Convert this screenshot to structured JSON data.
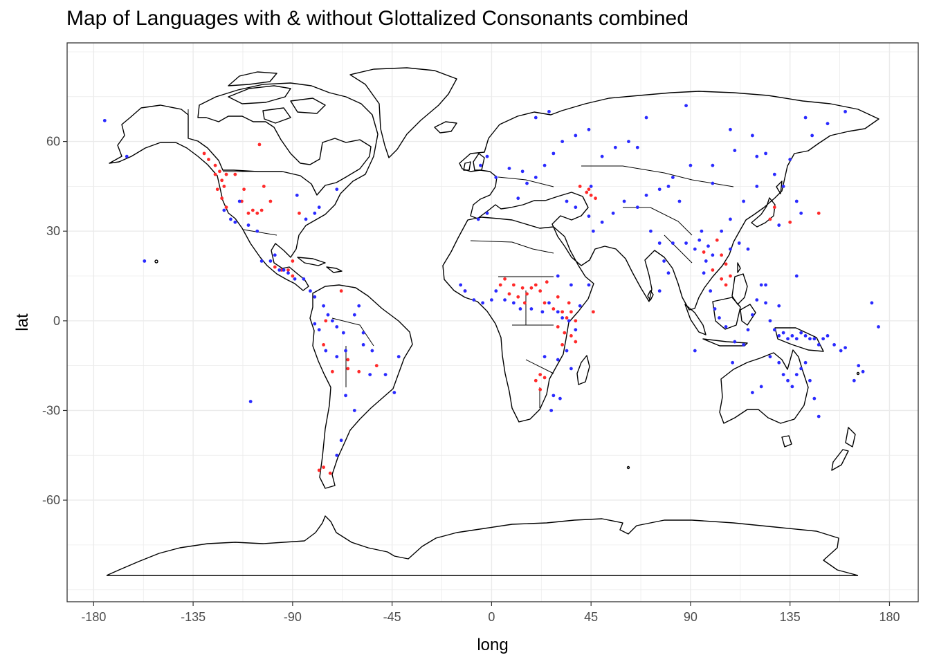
{
  "title": "Map of Languages with & without Glottalized Consonants combined",
  "colors": {
    "with_glottalized": "#ff2a2a",
    "without_glottalized": "#2a2aff",
    "grid": "#ebebeb",
    "panel_border": "#333333"
  },
  "chart_data": {
    "type": "scatter",
    "title": "Map of Languages with & without Glottalized Consonants combined",
    "xlabel": "long",
    "ylabel": "lat",
    "xlim": [
      -192,
      193
    ],
    "ylim": [
      -94,
      93
    ],
    "x_ticks": [
      -180,
      -135,
      -90,
      -45,
      0,
      45,
      90,
      135,
      180
    ],
    "x_tick_labels": [
      "-180",
      "-135",
      "-90",
      "-45",
      "0",
      "45",
      "90",
      "135",
      "180"
    ],
    "y_ticks": [
      -60,
      -30,
      0,
      30,
      60
    ],
    "y_tick_labels": [
      "-60",
      "-30",
      "0",
      "30",
      "60"
    ],
    "grid": true,
    "legend": "none",
    "series": [
      {
        "color": "#ff2a2a",
        "points": [
          [
            -130,
            56
          ],
          [
            -128,
            54
          ],
          [
            -125,
            52
          ],
          [
            -123,
            50
          ],
          [
            -122,
            47
          ],
          [
            -124,
            44
          ],
          [
            -120,
            49
          ],
          [
            -116,
            49
          ],
          [
            -105,
            59
          ],
          [
            -103,
            45
          ],
          [
            -112,
            44
          ],
          [
            -110,
            36
          ],
          [
            -106,
            36
          ],
          [
            -104,
            37
          ],
          [
            -113,
            40
          ],
          [
            -120,
            38
          ],
          [
            -122,
            41
          ],
          [
            -121,
            45
          ],
          [
            -100,
            40
          ],
          [
            -87,
            36
          ],
          [
            -90,
            20
          ],
          [
            -92,
            17
          ],
          [
            -90,
            15
          ],
          [
            -98,
            18
          ],
          [
            -95,
            17
          ],
          [
            -76,
            -8
          ],
          [
            -72,
            -17
          ],
          [
            -65,
            -16
          ],
          [
            -78,
            -50
          ],
          [
            -76,
            -49
          ],
          [
            -65,
            -13
          ],
          [
            -60,
            -17
          ],
          [
            -52,
            -15
          ],
          [
            10,
            12
          ],
          [
            8,
            9
          ],
          [
            12,
            8
          ],
          [
            14,
            11
          ],
          [
            16,
            9
          ],
          [
            18,
            11
          ],
          [
            20,
            12
          ],
          [
            22,
            10
          ],
          [
            25,
            13
          ],
          [
            15,
            6
          ],
          [
            28,
            4
          ],
          [
            32,
            3
          ],
          [
            35,
            6
          ],
          [
            34,
            1
          ],
          [
            36,
            3
          ],
          [
            30,
            -2
          ],
          [
            33,
            -4
          ],
          [
            36,
            -5
          ],
          [
            38,
            -7
          ],
          [
            22,
            -18
          ],
          [
            20,
            -20
          ],
          [
            22,
            -23
          ],
          [
            24,
            -19
          ],
          [
            38,
            0
          ],
          [
            32,
            -8
          ],
          [
            40,
            45
          ],
          [
            43,
            43
          ],
          [
            45,
            42
          ],
          [
            47,
            41
          ],
          [
            44,
            44
          ],
          [
            102,
            27
          ],
          [
            104,
            22
          ],
          [
            106,
            19
          ],
          [
            108,
            15
          ],
          [
            106,
            12
          ],
          [
            104,
            14
          ],
          [
            100,
            17
          ],
          [
            96,
            23
          ],
          [
            128,
            38
          ],
          [
            126,
            34
          ],
          [
            135,
            33
          ],
          [
            148,
            36
          ],
          [
            4,
            12
          ],
          [
            6,
            14
          ],
          [
            -73,
            -51
          ],
          [
            24,
            6
          ],
          [
            46,
            3
          ],
          [
            -125,
            49
          ],
          [
            -108,
            37
          ],
          [
            -12,
            10
          ],
          [
            30,
            8
          ],
          [
            -75,
            0
          ],
          [
            -68,
            10
          ]
        ]
      },
      {
        "color": "#2a2aff",
        "points": [
          [
            -175,
            67
          ],
          [
            -165,
            55
          ],
          [
            -121,
            37
          ],
          [
            -118,
            34
          ],
          [
            -116,
            33
          ],
          [
            -110,
            32
          ],
          [
            -106,
            30
          ],
          [
            -114,
            40
          ],
          [
            -100,
            20
          ],
          [
            -98,
            22
          ],
          [
            -104,
            20
          ],
          [
            -96,
            17
          ],
          [
            -94,
            17
          ],
          [
            -92,
            16
          ],
          [
            -89,
            14
          ],
          [
            -85,
            14
          ],
          [
            -82,
            10
          ],
          [
            -80,
            8
          ],
          [
            -76,
            5
          ],
          [
            -74,
            2
          ],
          [
            -72,
            0
          ],
          [
            -70,
            -2
          ],
          [
            -67,
            -4
          ],
          [
            -62,
            2
          ],
          [
            -60,
            5
          ],
          [
            -58,
            -4
          ],
          [
            -54,
            -10
          ],
          [
            -48,
            -18
          ],
          [
            -44,
            -24
          ],
          [
            -42,
            -12
          ],
          [
            -66,
            -25
          ],
          [
            -68,
            -40
          ],
          [
            -70,
            -45
          ],
          [
            -62,
            -30
          ],
          [
            -157,
            20
          ],
          [
            -109,
            -27
          ],
          [
            -14,
            12
          ],
          [
            -12,
            10
          ],
          [
            -8,
            7
          ],
          [
            -4,
            6
          ],
          [
            0,
            7
          ],
          [
            2,
            10
          ],
          [
            6,
            7
          ],
          [
            10,
            6
          ],
          [
            13,
            4
          ],
          [
            18,
            4
          ],
          [
            23,
            3
          ],
          [
            26,
            6
          ],
          [
            30,
            3
          ],
          [
            32,
            1
          ],
          [
            35,
            0
          ],
          [
            38,
            -3
          ],
          [
            34,
            -10
          ],
          [
            30,
            -13
          ],
          [
            24,
            -12
          ],
          [
            28,
            -25
          ],
          [
            27,
            -30
          ],
          [
            31,
            -26
          ],
          [
            -6,
            34
          ],
          [
            -2,
            36
          ],
          [
            12,
            41
          ],
          [
            16,
            46
          ],
          [
            20,
            48
          ],
          [
            24,
            52
          ],
          [
            28,
            56
          ],
          [
            32,
            60
          ],
          [
            38,
            62
          ],
          [
            44,
            64
          ],
          [
            50,
            55
          ],
          [
            56,
            58
          ],
          [
            62,
            60
          ],
          [
            20,
            68
          ],
          [
            26,
            70
          ],
          [
            -5,
            52
          ],
          [
            -2,
            55
          ],
          [
            2,
            48
          ],
          [
            8,
            51
          ],
          [
            14,
            50
          ],
          [
            34,
            40
          ],
          [
            38,
            38
          ],
          [
            44,
            35
          ],
          [
            46,
            30
          ],
          [
            50,
            33
          ],
          [
            55,
            36
          ],
          [
            60,
            40
          ],
          [
            66,
            38
          ],
          [
            70,
            42
          ],
          [
            76,
            44
          ],
          [
            82,
            48
          ],
          [
            90,
            52
          ],
          [
            100,
            52
          ],
          [
            110,
            57
          ],
          [
            120,
            55
          ],
          [
            124,
            56
          ],
          [
            128,
            49
          ],
          [
            132,
            45
          ],
          [
            138,
            40
          ],
          [
            140,
            36
          ],
          [
            130,
            32
          ],
          [
            135,
            54
          ],
          [
            145,
            62
          ],
          [
            152,
            66
          ],
          [
            160,
            70
          ],
          [
            142,
            68
          ],
          [
            118,
            62
          ],
          [
            108,
            64
          ],
          [
            88,
            72
          ],
          [
            70,
            68
          ],
          [
            72,
            30
          ],
          [
            76,
            26
          ],
          [
            78,
            20
          ],
          [
            80,
            16
          ],
          [
            76,
            10
          ],
          [
            82,
            26
          ],
          [
            88,
            26
          ],
          [
            92,
            24
          ],
          [
            94,
            27
          ],
          [
            98,
            25
          ],
          [
            97,
            20
          ],
          [
            96,
            16
          ],
          [
            99,
            10
          ],
          [
            101,
            4
          ],
          [
            103,
            1
          ],
          [
            106,
            -2
          ],
          [
            110,
            -7
          ],
          [
            114,
            -8
          ],
          [
            116,
            -3
          ],
          [
            118,
            2
          ],
          [
            120,
            7
          ],
          [
            122,
            12
          ],
          [
            124,
            6
          ],
          [
            126,
            0
          ],
          [
            128,
            -3
          ],
          [
            130,
            -5
          ],
          [
            132,
            -4
          ],
          [
            134,
            -6
          ],
          [
            136,
            -5
          ],
          [
            138,
            -6
          ],
          [
            140,
            -4
          ],
          [
            142,
            -5
          ],
          [
            144,
            -6
          ],
          [
            146,
            -6
          ],
          [
            148,
            -8
          ],
          [
            150,
            -6
          ],
          [
            152,
            -5
          ],
          [
            155,
            -8
          ],
          [
            158,
            -10
          ],
          [
            160,
            -9
          ],
          [
            130,
            -14
          ],
          [
            132,
            -18
          ],
          [
            134,
            -20
          ],
          [
            136,
            -22
          ],
          [
            138,
            -18
          ],
          [
            140,
            -16
          ],
          [
            142,
            -14
          ],
          [
            144,
            -20
          ],
          [
            146,
            -26
          ],
          [
            148,
            -32
          ],
          [
            122,
            -22
          ],
          [
            118,
            -24
          ],
          [
            126,
            -12
          ],
          [
            166,
            -15
          ],
          [
            168,
            -17
          ],
          [
            172,
            6
          ],
          [
            175,
            -2
          ],
          [
            109,
            -14
          ],
          [
            138,
            15
          ],
          [
            104,
            30
          ],
          [
            108,
            34
          ],
          [
            114,
            40
          ],
          [
            120,
            45
          ],
          [
            112,
            26
          ],
          [
            116,
            24
          ],
          [
            108,
            24
          ],
          [
            100,
            22
          ],
          [
            95,
            30
          ],
          [
            85,
            40
          ],
          [
            80,
            45
          ],
          [
            -88,
            42
          ],
          [
            -80,
            36
          ],
          [
            -84,
            34
          ],
          [
            -78,
            38
          ],
          [
            -70,
            44
          ],
          [
            -78,
            -3
          ],
          [
            -80,
            -1
          ],
          [
            -75,
            -10
          ],
          [
            -66,
            -10
          ],
          [
            -70,
            -12
          ],
          [
            -58,
            -8
          ],
          [
            -55,
            -18
          ],
          [
            45,
            45
          ],
          [
            92,
            -10
          ],
          [
            164,
            -20
          ],
          [
            30,
            15
          ],
          [
            36,
            12
          ],
          [
            44,
            12
          ],
          [
            36,
            -16
          ],
          [
            40,
            5
          ],
          [
            130,
            5
          ],
          [
            124,
            12
          ],
          [
            66,
            58
          ],
          [
            100,
            46
          ]
        ]
      }
    ]
  }
}
